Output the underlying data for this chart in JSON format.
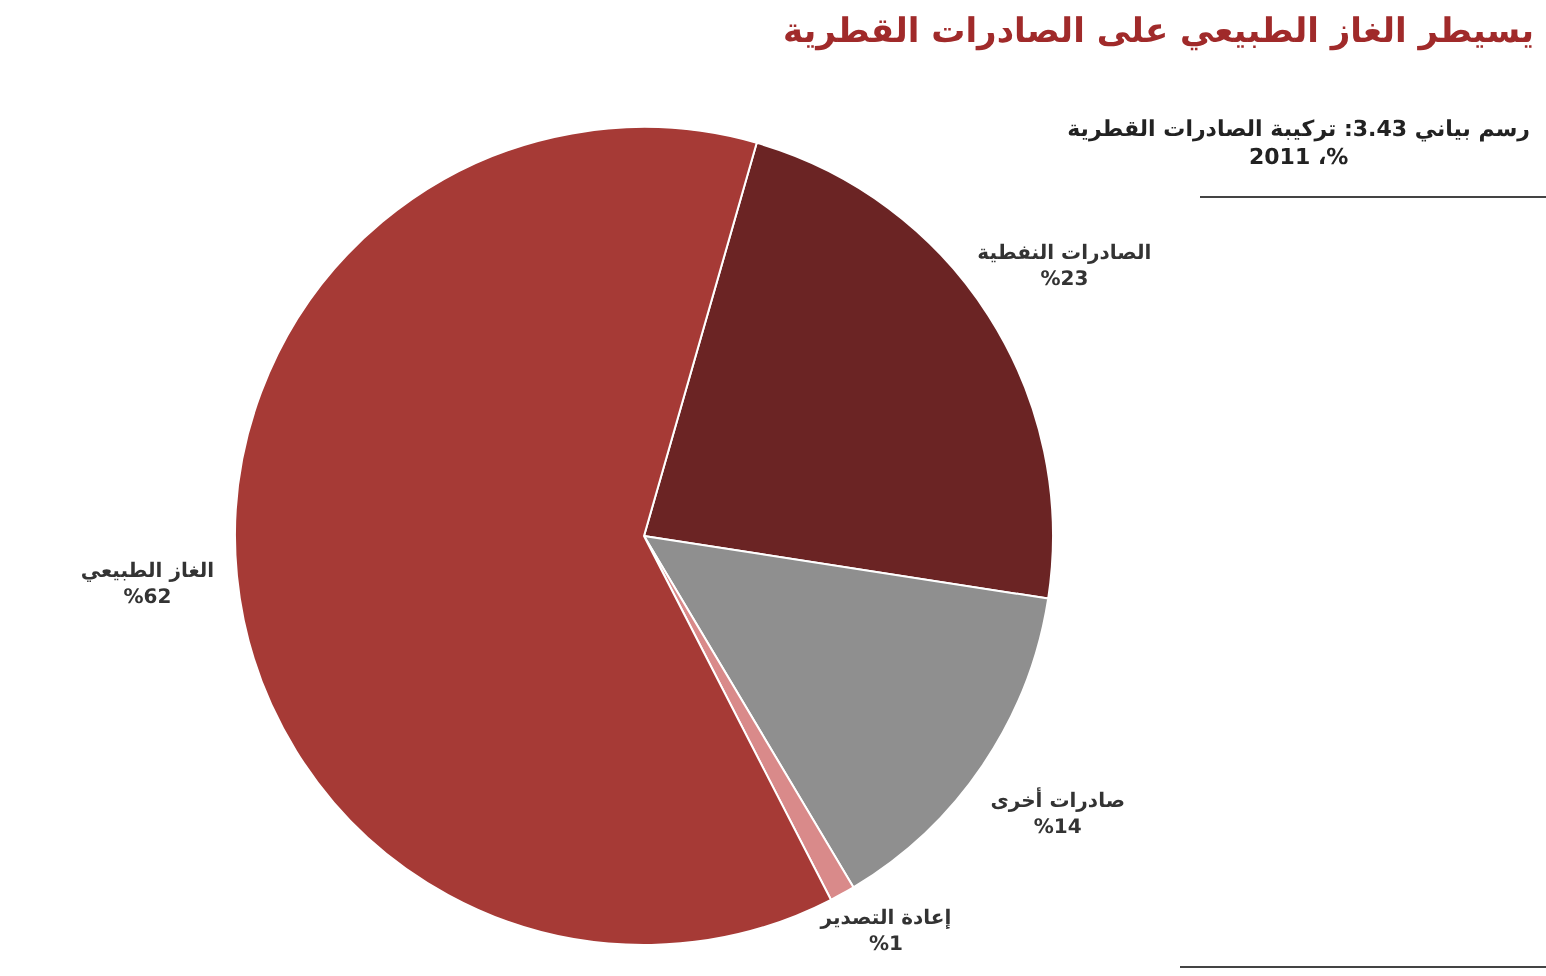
{
  "chart_data": {
    "type": "pie",
    "title": "يسيطر الغاز الطبيعي على الصادرات القطرية",
    "subtitle": "رسم بياني 3.43: تركيبة الصادرات القطرية\n%، 2011",
    "categories": [
      "الصادرات النفطية",
      "صادرات أخرى",
      "إعادة التصدير",
      "الغاز الطبيعي"
    ],
    "values": [
      23,
      14,
      1,
      62
    ],
    "colors": [
      "#6b2424",
      "#8f8f8f",
      "#d98a8a",
      "#a63a36"
    ],
    "value_labels": [
      "%23",
      "%14",
      "%1",
      "%62"
    ]
  }
}
